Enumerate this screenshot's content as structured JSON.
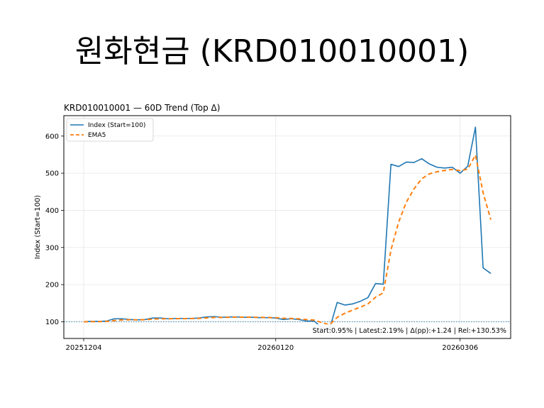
{
  "slide": {
    "title": "원화현금 (KRD010010001)"
  },
  "chart_data": {
    "type": "line",
    "title": "KRD010010001 — 60D Trend (Top Δ)",
    "xlabel": "",
    "ylabel": "Index (Start=100)",
    "ylim": [
      55,
      655
    ],
    "yticks": [
      100,
      200,
      300,
      400,
      500,
      600
    ],
    "xticks": [
      {
        "index": 0,
        "label": "20251204"
      },
      {
        "index": 25,
        "label": "20260120"
      },
      {
        "index": 49,
        "label": "20260306"
      }
    ],
    "grid": true,
    "legend_position": "top-left",
    "baseline": 100,
    "stats_text": "Start:0.95% | Latest:2.19% | Δ(pp):+1.24 | Rel:+130.53%",
    "colors": {
      "index": "#1f77b4",
      "ema": "#ff7f0e",
      "baseline": "#1f77b4"
    },
    "series": [
      {
        "name": "Index (Start=100)",
        "style": "solid",
        "values": [
          100,
          101,
          101,
          102,
          108,
          108,
          106,
          105,
          106,
          110,
          110,
          108,
          109,
          109,
          109,
          110,
          113,
          114,
          112,
          113,
          113,
          112,
          112,
          111,
          111,
          110,
          106,
          108,
          106,
          102,
          102,
          84,
          80,
          152,
          145,
          148,
          155,
          165,
          203,
          201,
          524,
          518,
          530,
          529,
          539,
          525,
          516,
          514,
          516,
          500,
          519,
          624,
          245,
          230
        ]
      },
      {
        "name": "EMA5",
        "style": "dashed",
        "values": [
          100,
          100.3,
          100.5,
          101,
          103.3,
          104.9,
          105.3,
          105.2,
          105.5,
          107,
          108,
          108,
          108.3,
          108.5,
          108.7,
          109.1,
          110.4,
          111.6,
          111.7,
          112.1,
          112.4,
          112.3,
          112.2,
          111.8,
          111.5,
          111,
          109.3,
          108.9,
          107.9,
          105.9,
          104.6,
          97.7,
          91.8,
          111.9,
          122.9,
          131.3,
          139.2,
          147.8,
          166.2,
          177.8,
          293.2,
          368.1,
          422,
          457.7,
          484.8,
          498.2,
          504.1,
          507.4,
          510.3,
          506.9,
          511,
          548.7,
          447.5,
          375
        ]
      }
    ]
  }
}
